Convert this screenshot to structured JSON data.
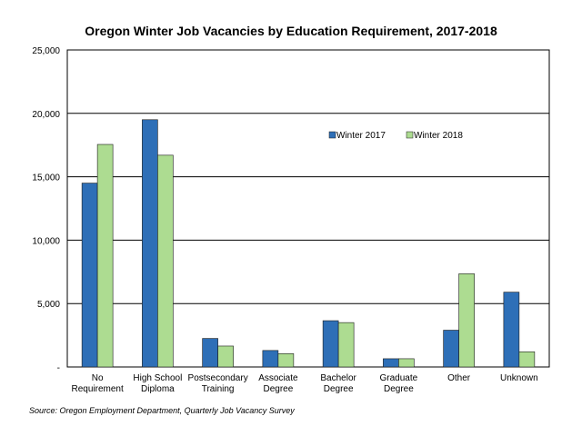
{
  "chart_data": {
    "type": "bar",
    "title": "Oregon Winter Job Vacancies by Education Requirement, 2017-2018",
    "categories": [
      [
        "No",
        "Requirement"
      ],
      [
        "High School",
        "Diploma"
      ],
      [
        "Postsecondary",
        "Training"
      ],
      [
        "Associate",
        "Degree"
      ],
      [
        "Bachelor",
        "Degree"
      ],
      [
        "Graduate",
        "Degree"
      ],
      [
        "Other"
      ],
      [
        "Unknown"
      ]
    ],
    "series": [
      {
        "name": "Winter 2017",
        "color": "#2e6fb7",
        "values": [
          14500,
          19500,
          2250,
          1300,
          3650,
          650,
          2900,
          5900
        ]
      },
      {
        "name": "Winter 2018",
        "color": "#addc91",
        "values": [
          17550,
          16700,
          1650,
          1050,
          3500,
          650,
          7350,
          1200
        ]
      }
    ],
    "ylim": [
      0,
      25000
    ],
    "yticks": [
      0,
      5000,
      10000,
      15000,
      20000,
      25000
    ],
    "ytick_labels": [
      "-",
      "5,000",
      "10,000",
      "15,000",
      "20,000",
      "25,000"
    ],
    "xlabel": "",
    "ylabel": "",
    "grid": true,
    "legend_position": "upper-right-inside"
  },
  "source": "Source: Oregon Employment Department, Quarterly Job Vacancy Survey"
}
